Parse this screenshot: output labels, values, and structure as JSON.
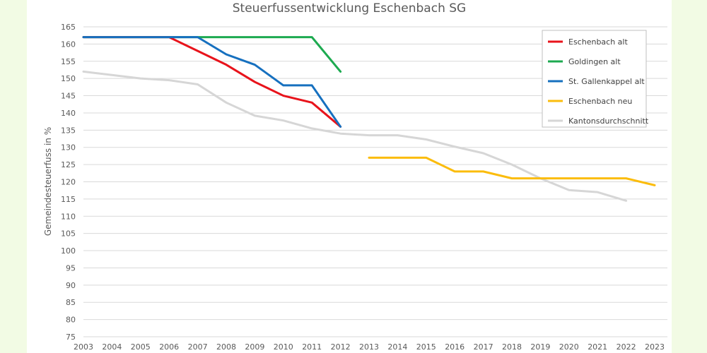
{
  "chart_data": {
    "type": "line",
    "title": "Steuerfussentwicklung Eschenbach SG",
    "xlabel": "",
    "ylabel": "Gemeindesteuerfuss in %",
    "categories": [
      "2003",
      "2004",
      "2005",
      "2006",
      "2007",
      "2008",
      "2009",
      "2010",
      "2011",
      "2012",
      "2013",
      "2014",
      "2015",
      "2016",
      "2017",
      "2018",
      "2019",
      "2020",
      "2021",
      "2022",
      "2023"
    ],
    "ylim": [
      75,
      165
    ],
    "yticks": [
      75,
      80,
      85,
      90,
      95,
      100,
      105,
      110,
      115,
      120,
      125,
      130,
      135,
      140,
      145,
      150,
      155,
      160,
      165
    ],
    "grid": true,
    "legend_position": "top-right",
    "series": [
      {
        "name": "Eschenbach alt",
        "color": "#e8131b",
        "values": [
          162,
          162,
          162,
          162,
          158,
          154,
          149,
          145,
          143,
          136,
          null,
          null,
          null,
          null,
          null,
          null,
          null,
          null,
          null,
          null,
          null
        ]
      },
      {
        "name": "Goldingen alt",
        "color": "#1daa50",
        "values": [
          162,
          162,
          162,
          162,
          162,
          162,
          162,
          162,
          162,
          152,
          null,
          null,
          null,
          null,
          null,
          null,
          null,
          null,
          null,
          null,
          null
        ]
      },
      {
        "name": "St. Gallenkappel alt",
        "color": "#1670bf",
        "values": [
          162,
          162,
          162,
          162,
          162,
          157,
          154,
          148,
          148,
          136,
          null,
          null,
          null,
          null,
          null,
          null,
          null,
          null,
          null,
          null,
          null
        ]
      },
      {
        "name": "Eschenbach neu",
        "color": "#fbbc0c",
        "values": [
          null,
          null,
          null,
          null,
          null,
          null,
          null,
          null,
          null,
          null,
          127,
          127,
          127,
          123,
          123,
          121,
          121,
          121,
          121,
          121,
          119
        ]
      },
      {
        "name": "Kantonsdurchschnitt",
        "color": "#d6d6d6",
        "values": [
          152,
          151,
          150,
          149.5,
          148.3,
          143,
          139.2,
          137.8,
          135.5,
          134,
          133.5,
          133.5,
          132.3,
          130.2,
          128.3,
          125,
          121,
          117.6,
          117,
          114.5,
          null
        ]
      }
    ]
  }
}
